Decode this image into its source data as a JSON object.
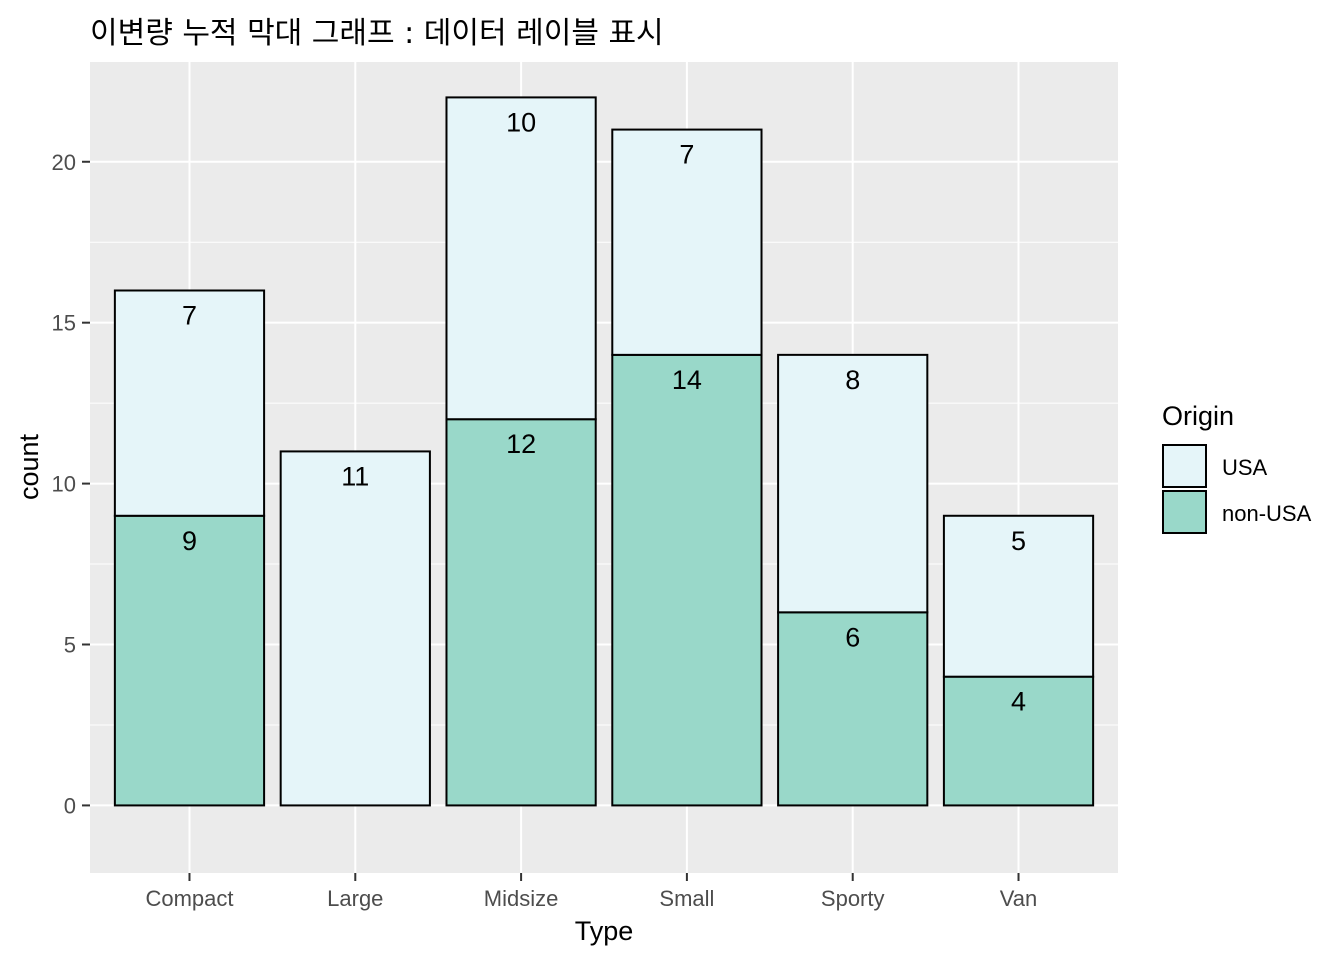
{
  "chart_data": {
    "type": "bar",
    "stacked": true,
    "title": "이변량 누적 막대 그래프 : 데이터 레이블 표시",
    "xlabel": "Type",
    "ylabel": "count",
    "categories": [
      "Compact",
      "Large",
      "Midsize",
      "Small",
      "Sporty",
      "Van"
    ],
    "series": [
      {
        "name": "non-USA",
        "values": [
          9,
          0,
          12,
          14,
          6,
          4
        ],
        "color": "#99d8c9"
      },
      {
        "name": "USA",
        "values": [
          7,
          11,
          10,
          7,
          8,
          5
        ],
        "color": "#e5f5f9"
      }
    ],
    "ylim": [
      -2.1,
      23.1
    ],
    "yticks": [
      0,
      5,
      10,
      15,
      20
    ],
    "grid": true,
    "panel_background": "#ebebeb",
    "legend": {
      "title": "Origin",
      "position": "right",
      "entries": [
        "USA",
        "non-USA"
      ]
    }
  }
}
